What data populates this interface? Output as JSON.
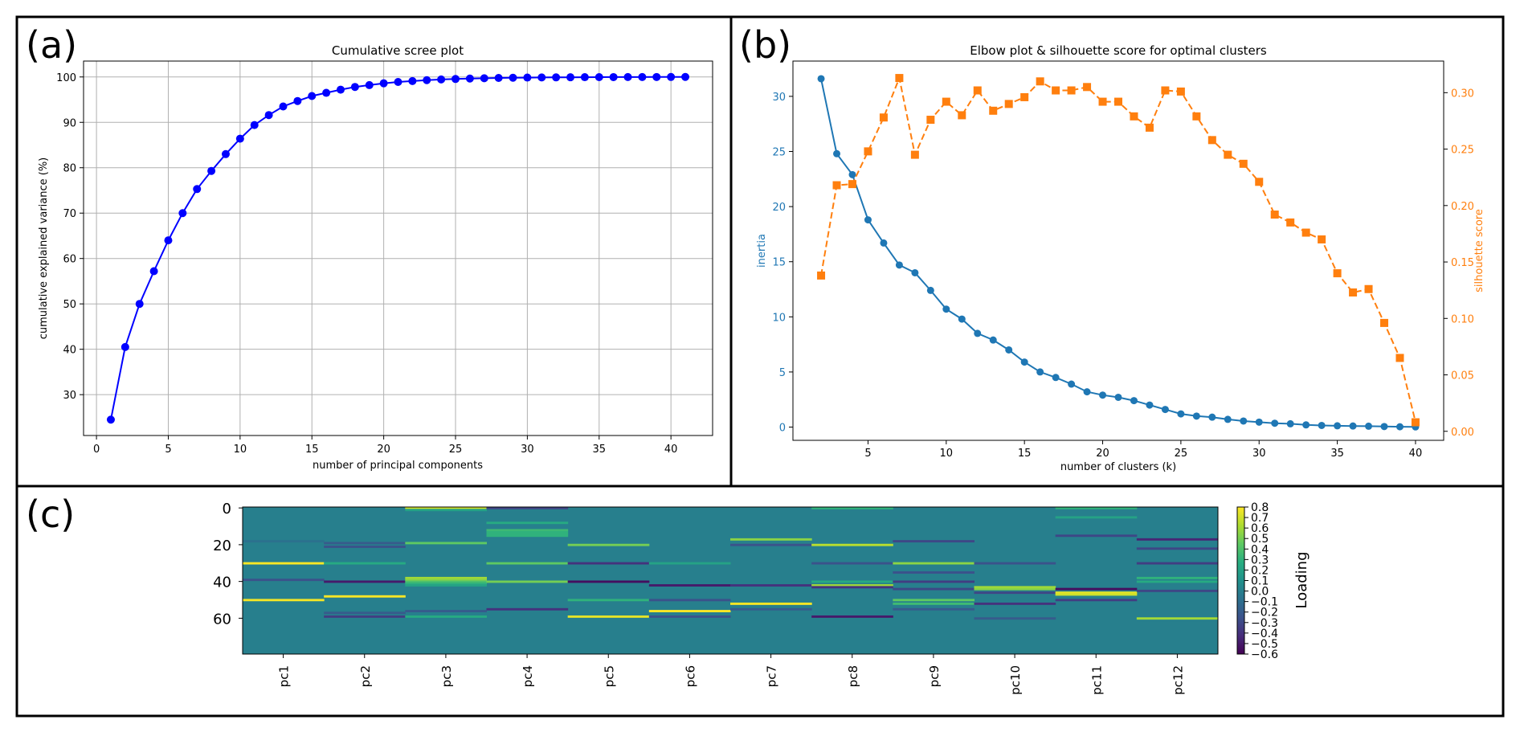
{
  "panels": {
    "a": {
      "letter": "(a)"
    },
    "b": {
      "letter": "(b)"
    },
    "c": {
      "letter": "(c)"
    }
  },
  "chart_data": [
    {
      "id": "a",
      "type": "line",
      "title": "Cumulative scree plot",
      "xlabel": "number of principal components",
      "ylabel": "cumulative explained variance (%)",
      "xlim": [
        -0.9,
        42.9
      ],
      "ylim": [
        21,
        103.5
      ],
      "xticks": [
        0,
        5,
        10,
        15,
        20,
        25,
        30,
        35,
        40
      ],
      "yticks": [
        30,
        40,
        50,
        60,
        70,
        80,
        90,
        100
      ],
      "grid": true,
      "color": "#0000ff",
      "x": [
        1,
        2,
        3,
        4,
        5,
        6,
        7,
        8,
        9,
        10,
        11,
        12,
        13,
        14,
        15,
        16,
        17,
        18,
        19,
        20,
        21,
        22,
        23,
        24,
        25,
        26,
        27,
        28,
        29,
        30,
        31,
        32,
        33,
        34,
        35,
        36,
        37,
        38,
        39,
        40,
        41
      ],
      "y": [
        24.5,
        40.5,
        50.0,
        57.2,
        64.0,
        70.0,
        75.3,
        79.3,
        83.0,
        86.4,
        89.4,
        91.6,
        93.5,
        94.7,
        95.8,
        96.5,
        97.2,
        97.8,
        98.2,
        98.6,
        98.9,
        99.1,
        99.3,
        99.45,
        99.55,
        99.65,
        99.72,
        99.78,
        99.83,
        99.86,
        99.89,
        99.91,
        99.93,
        99.95,
        99.96,
        99.97,
        99.98,
        99.985,
        99.99,
        99.995,
        100.0
      ]
    },
    {
      "id": "b",
      "type": "line",
      "title": "Elbow plot & silhouette score for optimal clusters",
      "xlabel": "number of clusters (k)",
      "xlim": [
        0.2,
        41.8
      ],
      "xticks": [
        5,
        10,
        15,
        20,
        25,
        30,
        35,
        40
      ],
      "grid": false,
      "axes": {
        "left": {
          "label": "inertia",
          "color": "#1f77b4",
          "ylim": [
            -1.2,
            33.2
          ],
          "ticks": [
            0,
            5,
            10,
            15,
            20,
            25,
            30
          ]
        },
        "right": {
          "label": "silhouette score",
          "color": "#ff7f0e",
          "ylim": [
            -0.008,
            0.328
          ],
          "ticks": [
            0.0,
            0.05,
            0.1,
            0.15,
            0.2,
            0.25,
            0.3
          ]
        }
      },
      "x": [
        2,
        3,
        4,
        5,
        6,
        7,
        8,
        9,
        10,
        11,
        12,
        13,
        14,
        15,
        16,
        17,
        18,
        19,
        20,
        21,
        22,
        23,
        24,
        25,
        26,
        27,
        28,
        29,
        30,
        31,
        32,
        33,
        34,
        35,
        36,
        37,
        38,
        39,
        40
      ],
      "series": [
        {
          "axis": "left",
          "style": "solid-circle",
          "values": [
            31.6,
            24.8,
            22.9,
            18.8,
            16.7,
            14.7,
            14.0,
            12.4,
            10.7,
            9.8,
            8.5,
            7.9,
            7.0,
            5.9,
            5.0,
            4.5,
            3.9,
            3.2,
            2.9,
            2.7,
            2.4,
            2.0,
            1.6,
            1.2,
            1.0,
            0.9,
            0.7,
            0.55,
            0.45,
            0.35,
            0.3,
            0.2,
            0.15,
            0.12,
            0.1,
            0.08,
            0.05,
            0.03,
            0.02
          ]
        },
        {
          "axis": "right",
          "style": "dashed-square",
          "values": [
            0.138,
            0.218,
            0.219,
            0.248,
            0.278,
            0.313,
            0.245,
            0.276,
            0.292,
            0.28,
            0.302,
            0.284,
            0.29,
            0.296,
            0.31,
            0.302,
            0.302,
            0.305,
            0.292,
            0.292,
            0.279,
            0.269,
            0.302,
            0.301,
            0.279,
            0.258,
            0.245,
            0.237,
            0.221,
            0.192,
            0.185,
            0.176,
            0.17,
            0.14,
            0.123,
            0.126,
            0.096,
            0.065,
            0.008
          ]
        }
      ]
    },
    {
      "id": "c",
      "type": "heatmap",
      "colorbar_label": "Loading",
      "colormap": "viridis",
      "vmin": -0.6,
      "vmax": 0.8,
      "baseline": 0.0,
      "rows": 80,
      "columns": [
        "pc1",
        "pc2",
        "pc3",
        "pc4",
        "pc5",
        "pc6",
        "pc7",
        "pc8",
        "pc9",
        "pc10",
        "pc11",
        "pc12"
      ],
      "yticks": [
        0,
        20,
        40,
        60
      ],
      "colorbar_ticks": [
        "0.8",
        "0.7",
        "0.6",
        "0.5",
        "0.4",
        "0.3",
        "0.2",
        "0.1",
        "0.0",
        "−0.1",
        "−0.2",
        "−0.3",
        "−0.4",
        "−0.5",
        "−0.6"
      ],
      "highlights": [
        [
          [
            18,
            -0.08
          ],
          [
            30,
            0.8
          ],
          [
            39,
            -0.25
          ],
          [
            50,
            0.78
          ]
        ],
        [
          [
            19,
            -0.2
          ],
          [
            21,
            -0.25
          ],
          [
            30,
            0.25
          ],
          [
            40,
            -0.5
          ],
          [
            48,
            0.8
          ],
          [
            59,
            -0.35
          ],
          [
            57,
            -0.2
          ]
        ],
        [
          [
            0,
            0.7
          ],
          [
            1,
            0.2
          ],
          [
            19,
            0.45
          ],
          [
            38,
            0.6
          ],
          [
            39,
            0.55
          ],
          [
            40,
            0.4
          ],
          [
            41,
            0.3
          ],
          [
            42,
            0.2
          ],
          [
            56,
            -0.2
          ],
          [
            59,
            0.25
          ]
        ],
        [
          [
            0,
            -0.3
          ],
          [
            8,
            0.25
          ],
          [
            12,
            0.35
          ],
          [
            13,
            0.3
          ],
          [
            14,
            0.3
          ],
          [
            15,
            0.3
          ],
          [
            30,
            0.45
          ],
          [
            40,
            0.5
          ],
          [
            55,
            -0.4
          ]
        ],
        [
          [
            20,
            0.5
          ],
          [
            30,
            -0.4
          ],
          [
            40,
            -0.55
          ],
          [
            50,
            0.3
          ],
          [
            59,
            0.75
          ]
        ],
        [
          [
            30,
            0.2
          ],
          [
            42,
            -0.5
          ],
          [
            50,
            -0.25
          ],
          [
            56,
            0.8
          ],
          [
            59,
            -0.25
          ]
        ],
        [
          [
            17,
            0.55
          ],
          [
            20,
            -0.25
          ],
          [
            42,
            -0.4
          ],
          [
            52,
            0.8
          ],
          [
            55,
            -0.2
          ]
        ],
        [
          [
            0,
            0.3
          ],
          [
            20,
            0.65
          ],
          [
            30,
            -0.25
          ],
          [
            40,
            0.25
          ],
          [
            42,
            0.6
          ],
          [
            43,
            -0.4
          ],
          [
            59,
            -0.5
          ]
        ],
        [
          [
            18,
            -0.3
          ],
          [
            30,
            0.55
          ],
          [
            35,
            -0.25
          ],
          [
            40,
            -0.35
          ],
          [
            44,
            -0.3
          ],
          [
            50,
            0.45
          ],
          [
            52,
            0.35
          ],
          [
            55,
            -0.2
          ]
        ],
        [
          [
            30,
            -0.25
          ],
          [
            43,
            0.6
          ],
          [
            44,
            0.55
          ],
          [
            46,
            -0.3
          ],
          [
            52,
            -0.4
          ],
          [
            60,
            -0.2
          ]
        ],
        [
          [
            0,
            0.3
          ],
          [
            5,
            0.2
          ],
          [
            15,
            -0.3
          ],
          [
            44,
            -0.55
          ],
          [
            46,
            0.75
          ],
          [
            47,
            0.7
          ],
          [
            50,
            -0.35
          ]
        ],
        [
          [
            17,
            -0.45
          ],
          [
            22,
            -0.3
          ],
          [
            30,
            -0.35
          ],
          [
            38,
            0.3
          ],
          [
            40,
            0.25
          ],
          [
            45,
            -0.3
          ],
          [
            60,
            0.6
          ]
        ]
      ]
    }
  ]
}
